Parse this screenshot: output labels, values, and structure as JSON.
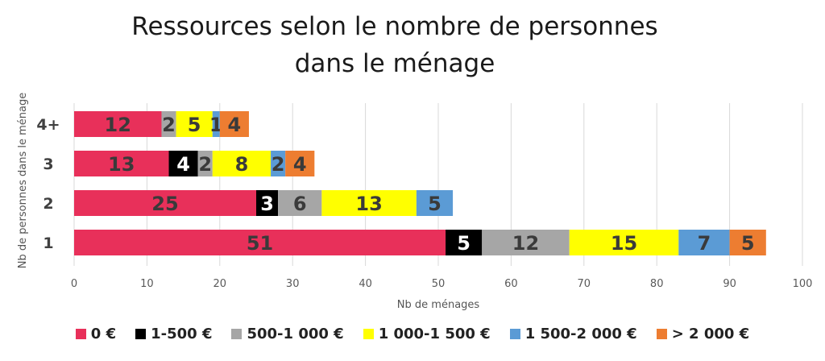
{
  "chart_data": {
    "type": "bar",
    "orientation": "horizontal",
    "stacked": true,
    "title_lines": [
      "Ressources selon le nombre de personnes",
      "dans le ménage"
    ],
    "xlabel": "Nb de ménages",
    "ylabel": "Nb de personnes dans le ménage",
    "xlim": [
      0,
      100
    ],
    "xticks": [
      0,
      10,
      20,
      30,
      40,
      50,
      60,
      70,
      80,
      90,
      100
    ],
    "grid": true,
    "legend_position": "bottom",
    "categories": [
      "4+",
      "3",
      "2",
      "1"
    ],
    "series": [
      {
        "name": "0 €",
        "color": "#E8305A",
        "label_color": "#3a3a3a",
        "values": [
          12,
          13,
          25,
          51
        ]
      },
      {
        "name": "1-500 €",
        "color": "#000000",
        "label_color": "#ffffff",
        "values": [
          0,
          4,
          3,
          5
        ]
      },
      {
        "name": "500-1 000 €",
        "color": "#A6A6A6",
        "label_color": "#3a3a3a",
        "values": [
          2,
          2,
          6,
          12
        ]
      },
      {
        "name": "1 000-1 500 €",
        "color": "#FFFF00",
        "label_color": "#3a3a3a",
        "values": [
          5,
          8,
          13,
          15
        ]
      },
      {
        "name": "1 500-2 000 €",
        "color": "#5B9BD5",
        "label_color": "#3a3a3a",
        "values": [
          1,
          2,
          5,
          7
        ]
      },
      {
        "name": "> 2 000 €",
        "color": "#ED7D31",
        "label_color": "#3a3a3a",
        "values": [
          4,
          4,
          0,
          5
        ]
      }
    ]
  }
}
